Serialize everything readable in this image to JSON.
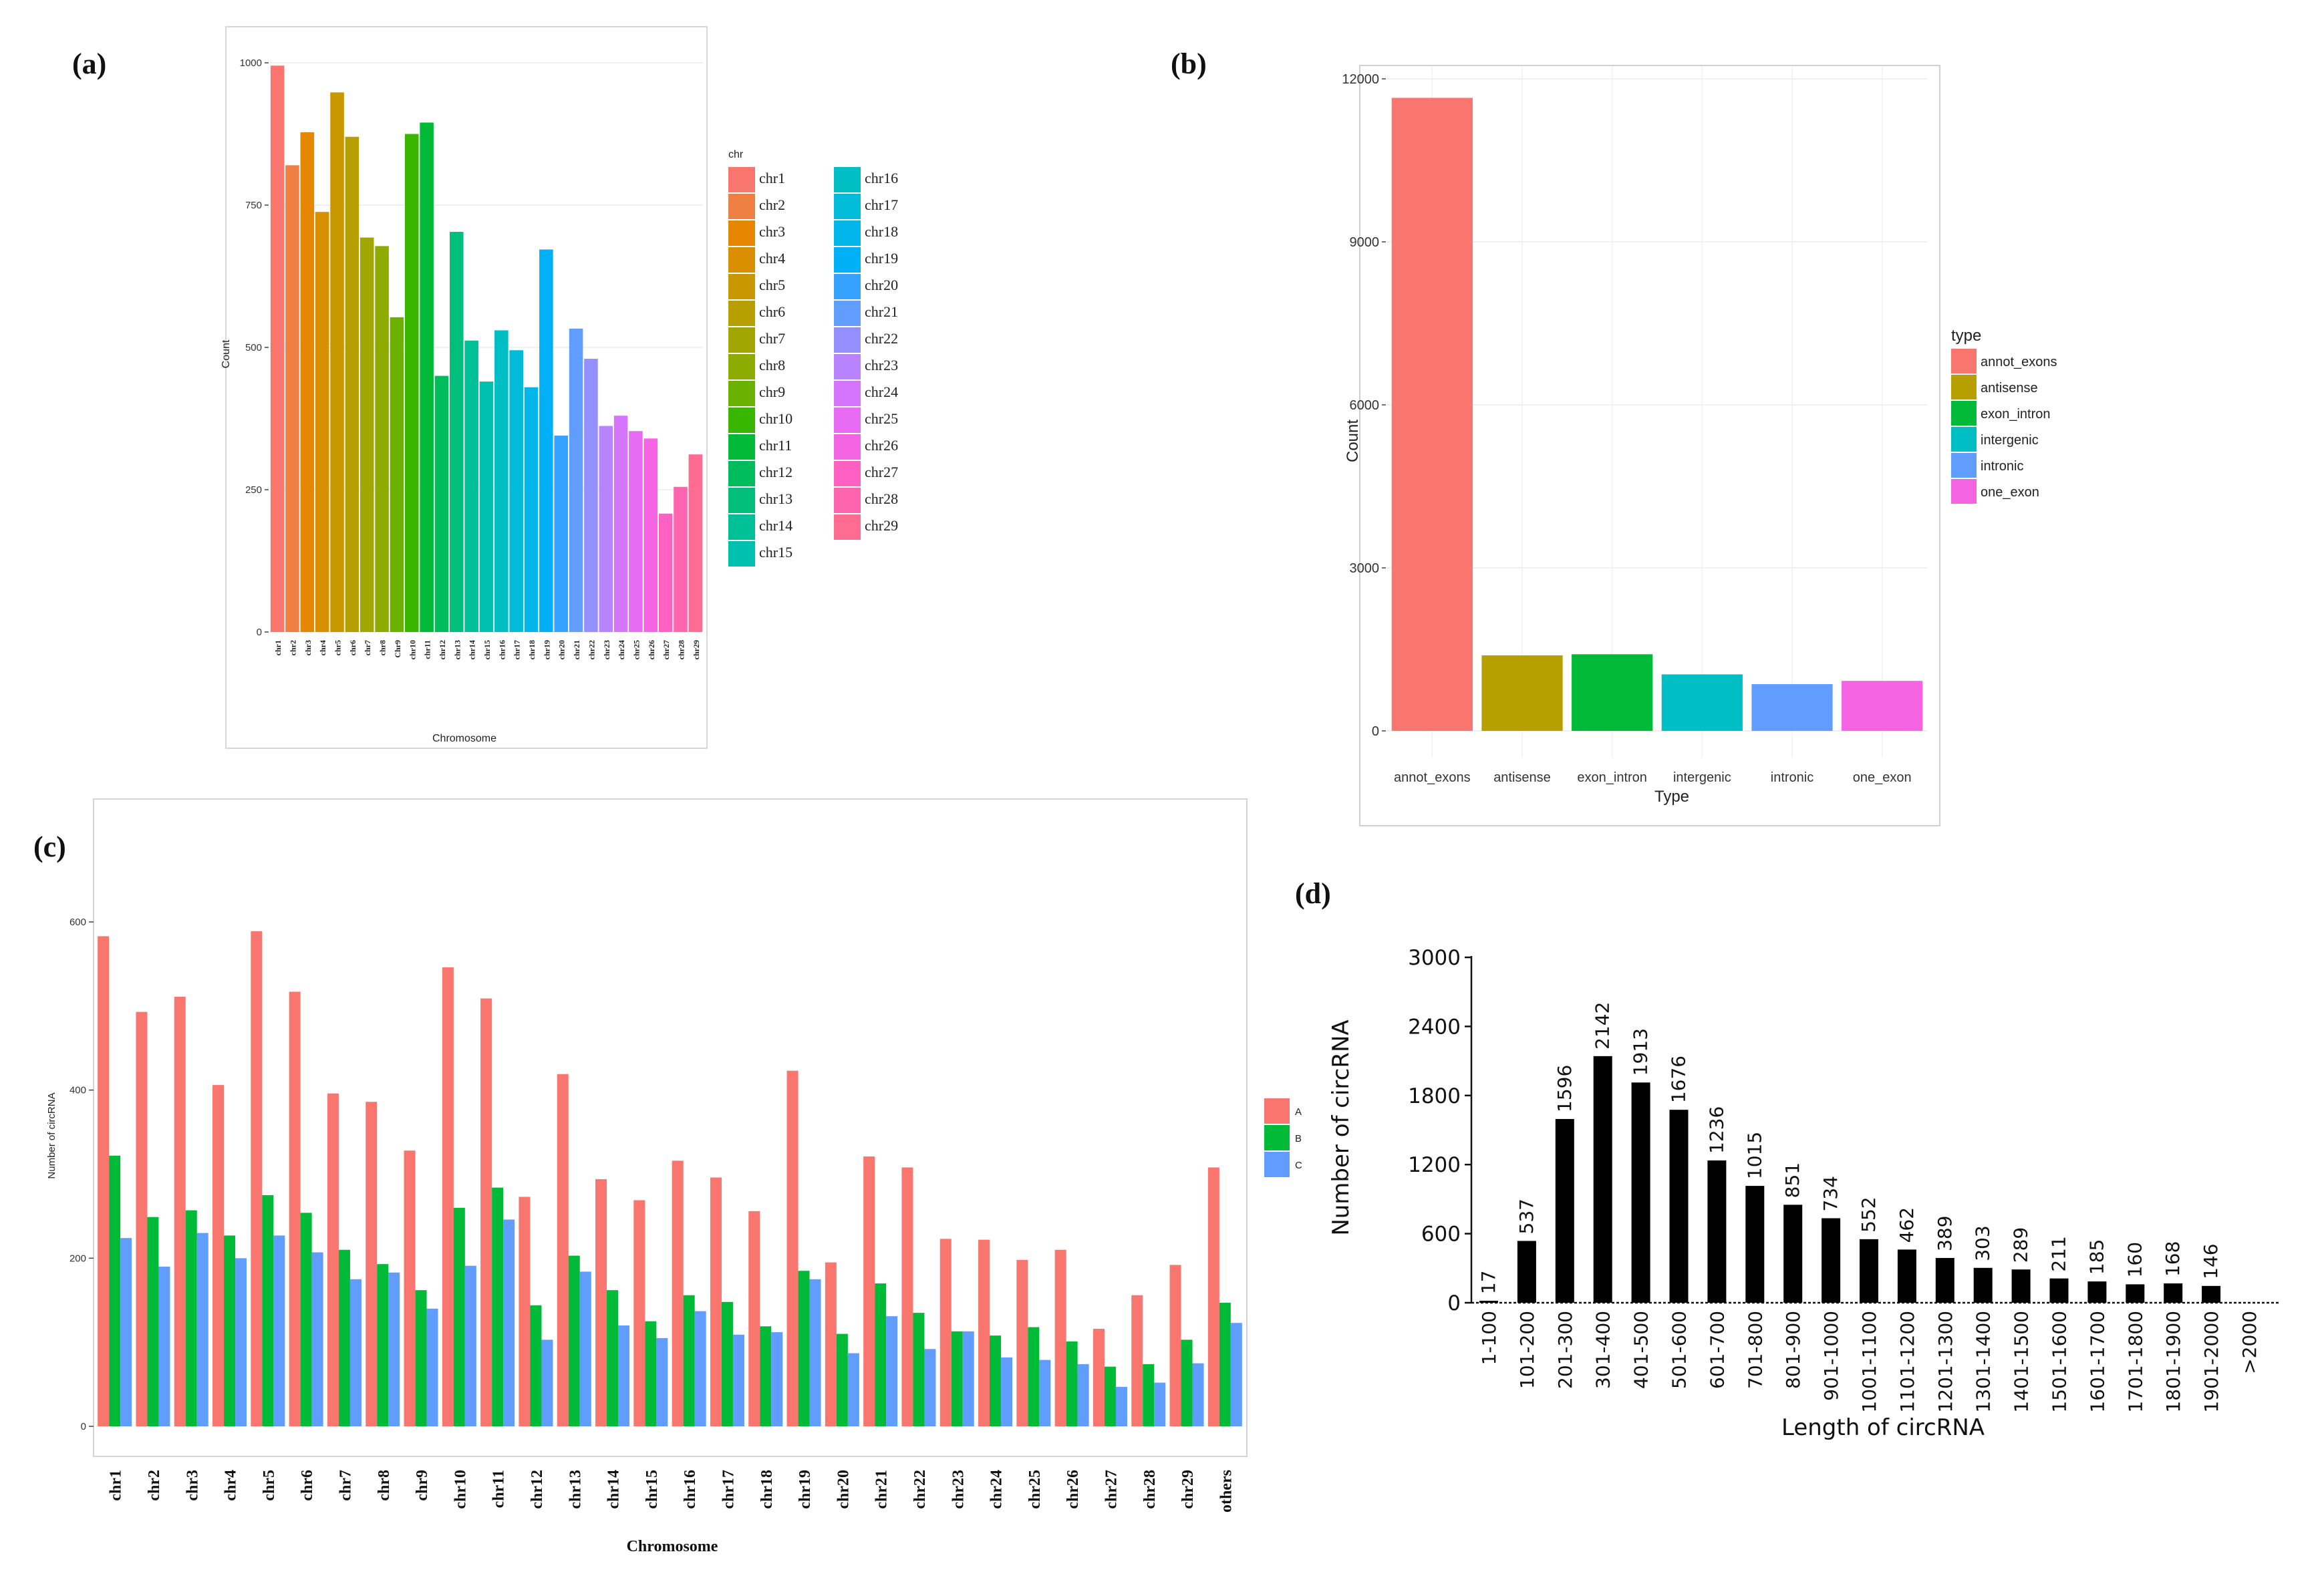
{
  "chart_data": [
    {
      "panel_label": "(a)",
      "type": "bar",
      "xlabel": "Chromosome",
      "ylabel": "Count",
      "ylim": [
        0,
        1000
      ],
      "yticks": [
        0,
        250,
        500,
        750,
        1000
      ],
      "categories": [
        "chr1",
        "chr2",
        "chr3",
        "chr4",
        "chr5",
        "chr6",
        "chr7",
        "chr8",
        "Chr9",
        "chr10",
        "chr11",
        "chr12",
        "chr13",
        "chr14",
        "chr15",
        "chr16",
        "chr17",
        "chr18",
        "chr19",
        "chr20",
        "chr21",
        "chr22",
        "chr23",
        "chr24",
        "chr25",
        "chr26",
        "chr27",
        "chr28",
        "chr29"
      ],
      "values": [
        995,
        820,
        878,
        738,
        948,
        870,
        693,
        678,
        553,
        875,
        895,
        450,
        703,
        512,
        440,
        530,
        495,
        430,
        672,
        345,
        533,
        480,
        362,
        380,
        353,
        340,
        208,
        255,
        312
      ],
      "colors": [
        "#F8766D",
        "#EE8044",
        "#E58700",
        "#DA8F00",
        "#C99800",
        "#B79F00",
        "#A3A500",
        "#8EAB00",
        "#6BB100",
        "#39B600",
        "#00BA38",
        "#00BD5C",
        "#00BF7D",
        "#00C097",
        "#00C0AF",
        "#00BFC4",
        "#00BCD8",
        "#00B6EB",
        "#00B0F6",
        "#35A2FF",
        "#619CFF",
        "#9590FF",
        "#B983FF",
        "#D575FE",
        "#E76BF3",
        "#F564E3",
        "#FF61C3",
        "#FF64B0",
        "#FF6C91"
      ],
      "legend_title": "chr",
      "legend_labels": [
        "chr1",
        "chr2",
        "chr3",
        "chr4",
        "chr5",
        "chr6",
        "chr7",
        "chr8",
        "chr9",
        "chr10",
        "chr11",
        "chr12",
        "chr13",
        "chr14",
        "chr15",
        "chr16",
        "chr17",
        "chr18",
        "chr19",
        "chr20",
        "chr21",
        "chr22",
        "chr23",
        "chr24",
        "chr25",
        "chr26",
        "chr27",
        "chr28",
        "chr29"
      ]
    },
    {
      "panel_label": "(b)",
      "type": "bar",
      "xlabel": "Type",
      "ylabel": "Count",
      "ylim": [
        0,
        12000
      ],
      "yticks": [
        0,
        3000,
        6000,
        9000,
        12000
      ],
      "categories": [
        "annot_exons",
        "antisense",
        "exon_intron",
        "intergenic",
        "intronic",
        "one_exon"
      ],
      "values": [
        11650,
        1390,
        1410,
        1040,
        860,
        920
      ],
      "colors": [
        "#F8766D",
        "#B79F00",
        "#00BA38",
        "#00BFC4",
        "#619CFF",
        "#F564E3"
      ],
      "legend_title": "type",
      "legend_labels": [
        "annot_exons",
        "antisense",
        "exon_intron",
        "intergenic",
        "intronic",
        "one_exon"
      ]
    },
    {
      "panel_label": "(c)",
      "type": "bar",
      "xlabel": "Chromosome",
      "ylabel": "Number of circRNA",
      "ylim": [
        0,
        600
      ],
      "yticks": [
        0,
        200,
        400,
        600
      ],
      "categories": [
        "chr1",
        "chr2",
        "chr3",
        "chr4",
        "chr5",
        "chr6",
        "chr7",
        "chr8",
        "chr9",
        "chr10",
        "chr11",
        "chr12",
        "chr13",
        "chr14",
        "chr15",
        "chr16",
        "chr17",
        "chr18",
        "chr19",
        "chr20",
        "chr21",
        "chr22",
        "chr23",
        "chr24",
        "chr25",
        "chr26",
        "chr27",
        "chr28",
        "chr29",
        "others"
      ],
      "series": [
        {
          "name": "A",
          "color": "#F8766D",
          "values": [
            583,
            493,
            511,
            406,
            589,
            517,
            396,
            386,
            328,
            546,
            509,
            273,
            419,
            294,
            269,
            316,
            296,
            256,
            423,
            195,
            321,
            308,
            223,
            222,
            198,
            210,
            116,
            156,
            192,
            308
          ]
        },
        {
          "name": "B",
          "color": "#00BA38",
          "values": [
            322,
            249,
            257,
            227,
            275,
            254,
            210,
            193,
            162,
            260,
            284,
            144,
            203,
            162,
            125,
            156,
            148,
            119,
            185,
            110,
            170,
            135,
            113,
            108,
            118,
            101,
            71,
            74,
            103,
            147
          ]
        },
        {
          "name": "C",
          "color": "#619CFF",
          "values": [
            224,
            190,
            230,
            200,
            227,
            207,
            175,
            183,
            140,
            191,
            246,
            103,
            184,
            120,
            105,
            137,
            109,
            112,
            175,
            87,
            131,
            92,
            113,
            82,
            79,
            74,
            47,
            52,
            75,
            123
          ]
        }
      ]
    },
    {
      "panel_label": "(d)",
      "type": "bar",
      "xlabel": "Length of circRNA",
      "ylabel": "Number of circRNA",
      "ylim": [
        0,
        3000
      ],
      "yticks": [
        0,
        600,
        1200,
        1800,
        2400,
        3000
      ],
      "categories": [
        "1-100",
        "101-200",
        "201-300",
        "301-400",
        "401-500",
        "501-600",
        "601-700",
        "701-800",
        "801-900",
        "901-1000",
        "1001-1100",
        "1101-1200",
        "1201-1300",
        "1301-1400",
        "1401-1500",
        "1501-1600",
        "1601-1700",
        "1701-1800",
        "1801-1900",
        "1901-2000",
        ">2000"
      ],
      "values": [
        17,
        537,
        1596,
        2142,
        1913,
        1676,
        1236,
        1015,
        851,
        734,
        552,
        462,
        389,
        303,
        289,
        211,
        185,
        160,
        168,
        146,
        null
      ],
      "data_labels": [
        "17",
        "537",
        "1596",
        "2142",
        "1913",
        "1676",
        "1236",
        "1015",
        "851",
        "734",
        "552",
        "462",
        "389",
        "303",
        "289",
        "211",
        "185",
        "160",
        "168",
        "146",
        ""
      ],
      "color": "#000000"
    }
  ]
}
